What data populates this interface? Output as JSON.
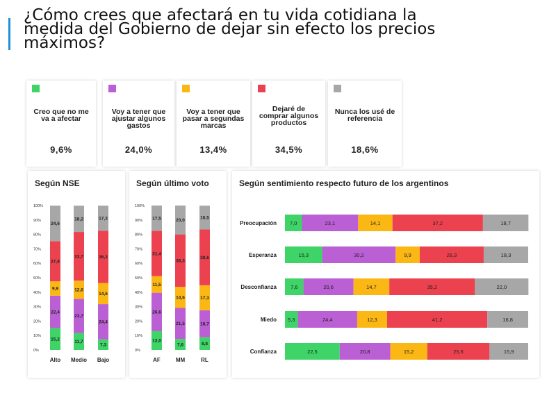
{
  "title": "¿Cómo crees que afectará en tu vida cotidiana la medida del Gobierno de dejar sin efecto los precios máximos?",
  "colors": {
    "green": "#3ed467",
    "purple": "#bb5fd4",
    "yellow": "#fbb814",
    "red": "#ec4250",
    "gray": "#a7a7a7"
  },
  "cards": [
    {
      "label": "Creo que no me va a afectar",
      "value": "9,6%",
      "color": "#3ed467"
    },
    {
      "label": "Voy a tener que ajustar algunos gastos",
      "value": "24,0%",
      "color": "#bb5fd4"
    },
    {
      "label": "Voy a tener que pasar a segundas marcas",
      "value": "13,4%",
      "color": "#fbb814"
    },
    {
      "label": "Dejaré de comprar algunos productos",
      "value": "34,5%",
      "color": "#ec4250"
    },
    {
      "label": "Nunca los usé de referencia",
      "value": "18,6%",
      "color": "#a7a7a7"
    }
  ],
  "panels": {
    "nse_title": "Según NSE",
    "voto_title": "Según último voto",
    "sentimiento_title": "Según sentimiento respecto futuro de los argentinos"
  },
  "chart_data": [
    {
      "type": "bar",
      "stacked": true,
      "orientation": "vertical",
      "title": "Según NSE",
      "categories": [
        "Alto",
        "Medio",
        "Bajo"
      ],
      "yticks": [
        "0%",
        "10%",
        "20%",
        "30%",
        "40%",
        "50%",
        "60%",
        "70%",
        "80%",
        "90%",
        "100%"
      ],
      "ylim": [
        0,
        100
      ],
      "series": [
        {
          "name": "Creo que no me va a afectar",
          "values": [
            15.2,
            11.7,
            7.3
          ],
          "labels": [
            "15,2",
            "11,7",
            "7,3"
          ]
        },
        {
          "name": "Voy a tener que ajustar algunos gastos",
          "values": [
            22.4,
            23.7,
            24.4
          ],
          "labels": [
            "22,4",
            "23,7",
            "24,4"
          ]
        },
        {
          "name": "Voy a tener que pasar a segundas marcas",
          "values": [
            9.9,
            12.6,
            14.6
          ],
          "labels": [
            "9,9",
            "12,6",
            "14,6"
          ]
        },
        {
          "name": "Dejaré de comprar algunos productos",
          "values": [
            27.8,
            33.7,
            36.3
          ],
          "labels": [
            "27,8",
            "33,7",
            "36,3"
          ]
        },
        {
          "name": "Nunca los usé de referencia",
          "values": [
            24.6,
            18.2,
            17.3
          ],
          "labels": [
            "24,6",
            "18,2",
            "17,3"
          ]
        }
      ]
    },
    {
      "type": "bar",
      "stacked": true,
      "orientation": "vertical",
      "title": "Según último voto",
      "categories": [
        "AF",
        "MM",
        "RL"
      ],
      "yticks": [
        "0%",
        "10%",
        "20%",
        "30%",
        "40%",
        "50%",
        "60%",
        "70%",
        "80%",
        "90%",
        "100%"
      ],
      "ylim": [
        0,
        100
      ],
      "series": [
        {
          "name": "Creo que no me va a afectar",
          "values": [
            13.0,
            7.6,
            8.8
          ],
          "labels": [
            "13,0",
            "7,6",
            "8,8"
          ]
        },
        {
          "name": "Voy a tener que ajustar algunos gastos",
          "values": [
            26.6,
            21.5,
            18.7
          ],
          "labels": [
            "26,6",
            "21,5",
            "18,7"
          ]
        },
        {
          "name": "Voy a tener que pasar a segundas marcas",
          "values": [
            11.5,
            14.6,
            17.3
          ],
          "labels": [
            "11,5",
            "14,6",
            "17,3"
          ]
        },
        {
          "name": "Dejaré de comprar algunos productos",
          "values": [
            31.4,
            36.3,
            38.6
          ],
          "labels": [
            "31,4",
            "36,3",
            "38,6"
          ]
        },
        {
          "name": "Nunca los usé de referencia",
          "values": [
            17.5,
            20.0,
            16.5
          ],
          "labels": [
            "17,5",
            "20,0",
            "16,5"
          ]
        }
      ]
    },
    {
      "type": "bar",
      "stacked": true,
      "orientation": "horizontal",
      "title": "Según sentimiento respecto futuro de los argentinos",
      "categories": [
        "Preocupación",
        "Esperanza",
        "Desconfianza",
        "Miedo",
        "Confianza"
      ],
      "series": [
        {
          "name": "Creo que no me va a afectar",
          "values": [
            7.0,
            15.3,
            7.6,
            5.3,
            22.5
          ],
          "labels": [
            "7,0",
            "15,3",
            "7,6",
            "5,3",
            "22,5"
          ]
        },
        {
          "name": "Voy a tener que ajustar algunos gastos",
          "values": [
            23.1,
            30.2,
            20.6,
            24.4,
            20.8
          ],
          "labels": [
            "23,1",
            "30,2",
            "20,6",
            "24,4",
            "20,8"
          ]
        },
        {
          "name": "Voy a tener que pasar a segundas marcas",
          "values": [
            14.1,
            9.9,
            14.7,
            12.3,
            15.2
          ],
          "labels": [
            "14,1",
            "9,9",
            "14,7",
            "12,3",
            "15,2"
          ]
        },
        {
          "name": "Dejaré de comprar algunos productos",
          "values": [
            37.2,
            26.3,
            35.2,
            41.2,
            25.6
          ],
          "labels": [
            "37,2",
            "26,3",
            "35,2",
            "41,2",
            "25,6"
          ]
        },
        {
          "name": "Nunca los usé de referencia",
          "values": [
            18.7,
            18.3,
            22.0,
            16.8,
            15.9
          ],
          "labels": [
            "18,7",
            "18,3",
            "22,0",
            "16,8",
            "15,9"
          ]
        }
      ]
    }
  ]
}
